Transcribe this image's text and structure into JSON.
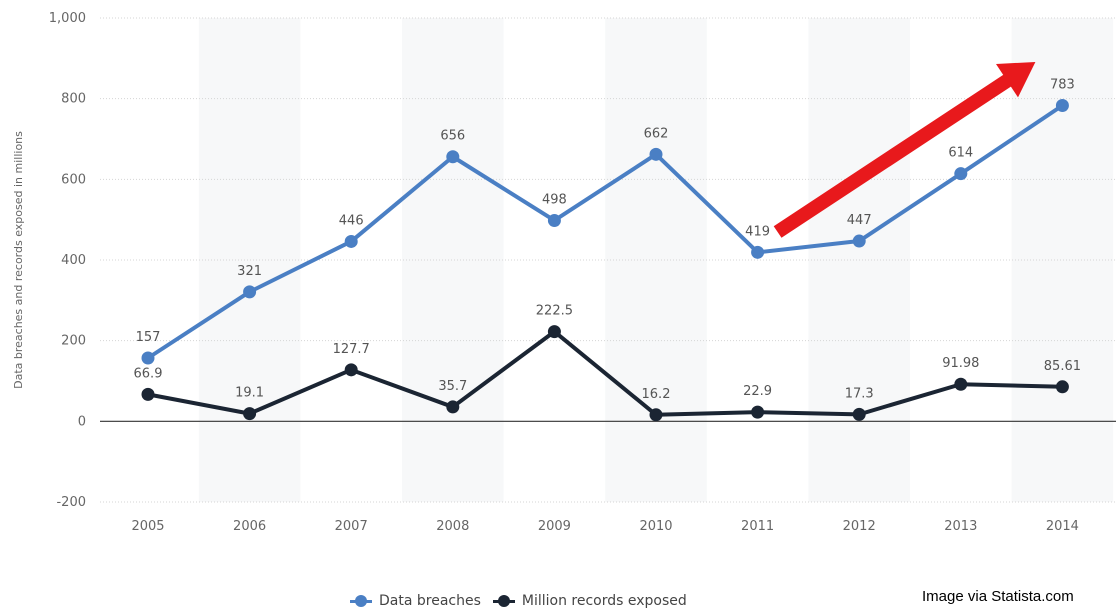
{
  "chart_data": {
    "type": "line",
    "title": "",
    "xlabel": "",
    "ylabel": "Data breaches and records exposed in millions",
    "categories": [
      "2005",
      "2006",
      "2007",
      "2008",
      "2009",
      "2010",
      "2011",
      "2012",
      "2013",
      "2014"
    ],
    "ylim": [
      -200,
      1000
    ],
    "yticks": [
      -200,
      0,
      200,
      400,
      600,
      800,
      1000
    ],
    "ytick_labels": [
      "-200",
      "0",
      "200",
      "400",
      "600",
      "800",
      "1,000"
    ],
    "grid": true,
    "legend_position": "bottom",
    "series": [
      {
        "name": "Data breaches",
        "color": "#4a7fc4",
        "values": [
          157,
          321,
          446,
          656,
          498,
          662,
          419,
          447,
          614,
          783
        ],
        "labels": [
          "157",
          "321",
          "446",
          "656",
          "498",
          "662",
          "419",
          "447",
          "614",
          "783"
        ]
      },
      {
        "name": "Million records exposed",
        "color": "#1b2533",
        "values": [
          66.9,
          19.1,
          127.7,
          35.7,
          222.5,
          16.2,
          22.9,
          17.3,
          91.98,
          85.61
        ],
        "labels": [
          "66.9",
          "19.1",
          "127.7",
          "35.7",
          "222.5",
          "16.2",
          "22.9",
          "17.3",
          "91.98",
          "85.61"
        ]
      }
    ],
    "annotation": {
      "type": "arrow",
      "color": "#e8191c",
      "from_category": "2011",
      "to_category": "2014"
    }
  },
  "credit": "Image via Statista.com"
}
